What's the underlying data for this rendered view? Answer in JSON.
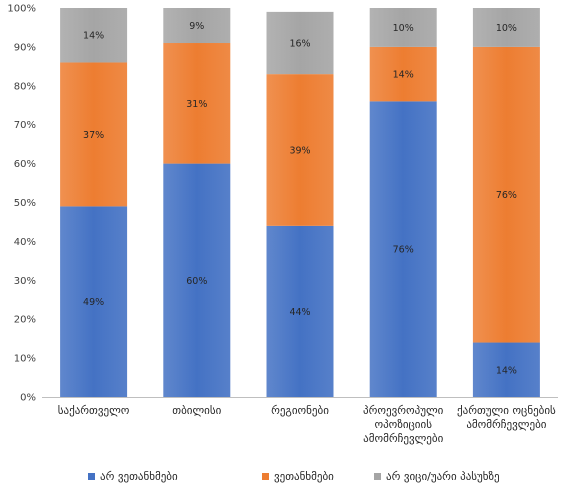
{
  "chart_data": {
    "type": "bar",
    "stacked": true,
    "percent": true,
    "categories": [
      [
        "საქართველო"
      ],
      [
        "თბილისი"
      ],
      [
        "რეგიონები"
      ],
      [
        "პროევროპული",
        "ოპოზიციის",
        "ამომრჩევლები"
      ],
      [
        "ქართული ოცნების",
        "ამომრჩევლები"
      ]
    ],
    "series": [
      {
        "name": "არ ვეთანხმები",
        "color": "#4472C4",
        "values": [
          49,
          60,
          44,
          76,
          14
        ],
        "labels": [
          "49%",
          "60%",
          "44%",
          "76%",
          "14%"
        ]
      },
      {
        "name": "ვეთანხმები",
        "color": "#ED7D31",
        "values": [
          37,
          31,
          39,
          14,
          76
        ],
        "labels": [
          "37%",
          "31%",
          "39%",
          "14%",
          "76%"
        ]
      },
      {
        "name": "არ ვიცი/უარი პასუხზე",
        "color": "#A5A5A5",
        "values": [
          14,
          9,
          16,
          10,
          10
        ],
        "labels": [
          "14%",
          "9%",
          "16%",
          "10%",
          "10%"
        ]
      }
    ],
    "yticks": [
      "0%",
      "10%",
      "20%",
      "30%",
      "40%",
      "50%",
      "60%",
      "70%",
      "80%",
      "90%",
      "100%"
    ],
    "ylim": [
      0,
      100
    ],
    "legend_position": "bottom",
    "grid": false
  }
}
